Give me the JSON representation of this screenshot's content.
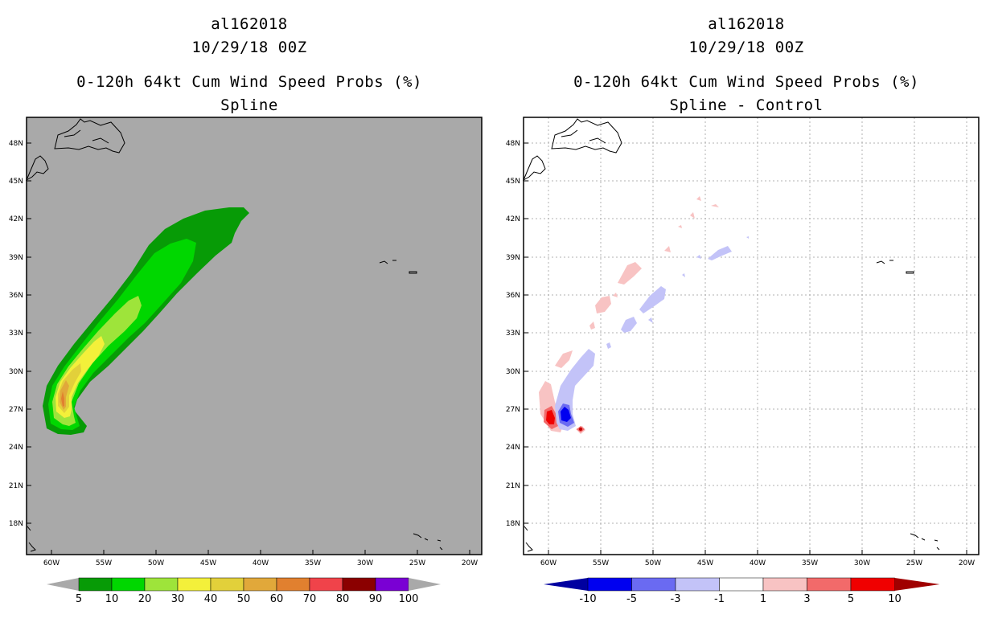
{
  "left_panel": {
    "storm_id": "al162018",
    "date": "10/29/18 00Z",
    "product": "0-120h 64kt Cum Wind Speed Probs (%)",
    "subtitle": "Spline",
    "background_color": "#a9a9a9",
    "colorbar": {
      "levels": [
        "5",
        "10",
        "20",
        "30",
        "40",
        "50",
        "60",
        "70",
        "80",
        "90",
        "100"
      ],
      "colors": [
        "#079b06",
        "#00d700",
        "#9ee43a",
        "#f3f03a",
        "#e2d03a",
        "#e1a83a",
        "#e1802f",
        "#f0434a",
        "#8b0000",
        "#7a00d4"
      ]
    }
  },
  "right_panel": {
    "storm_id": "al162018",
    "date": "10/29/18 00Z",
    "product": "0-120h 64kt Cum Wind Speed Probs (%)",
    "subtitle": "Spline - Control",
    "background_color": "#ffffff",
    "colorbar": {
      "levels": [
        "-10",
        "-5",
        "-3",
        "-1",
        "1",
        "3",
        "5",
        "10"
      ],
      "colors": [
        "#0000a0",
        "#0000f0",
        "#6a6af2",
        "#c3c3f8",
        "#ffffff",
        "#f8c3c3",
        "#f26a6a",
        "#f00000",
        "#a00000"
      ]
    }
  },
  "axes": {
    "lat_labels": [
      "48N",
      "45N",
      "42N",
      "39N",
      "36N",
      "33N",
      "30N",
      "27N",
      "24N",
      "21N",
      "18N"
    ],
    "lon_labels": [
      "60W",
      "55W",
      "50W",
      "45W",
      "40W",
      "35W",
      "30W",
      "25W",
      "20W"
    ]
  }
}
